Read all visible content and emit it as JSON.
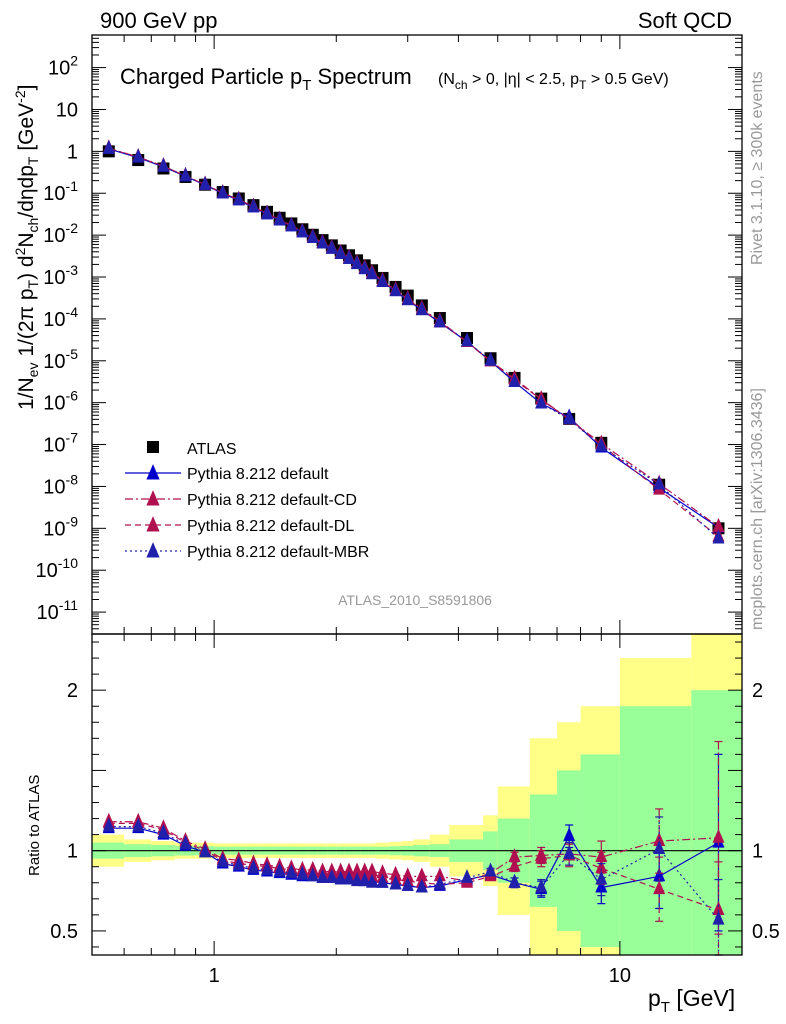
{
  "header": {
    "left": "900 GeV pp",
    "right": "Soft QCD"
  },
  "side_labels": {
    "rivet": "Rivet 3.1.10, ≥ 300k events",
    "mcplots": "mcplots.cern.ch [arXiv:1306.3436]"
  },
  "chart_data": {
    "type": "scatter",
    "title": "Charged Particle p_T Spectrum",
    "subtitle": "(N_ch > 0, |η| < 2.5, p_T > 0.5 GeV)",
    "analysis_id": "ATLAS_2010_S8591806",
    "xlabel": "p_T [GeV]",
    "ylabel_main": "1/N_ev 1/(2π p_T) d²N_ch/dηdp_T [GeV⁻²]",
    "ylabel_ratio": "Ratio to ATLAS",
    "xscale": "log",
    "xlim": [
      0.5,
      20
    ],
    "yscale": "log",
    "ylim": [
      3e-12,
      600
    ],
    "ratio_ylim": [
      0.35,
      2.35
    ],
    "x_ticks": [
      {
        "v": 1,
        "label": "1"
      },
      {
        "v": 10,
        "label": "10"
      }
    ],
    "y_ticks": [
      {
        "v": 1e-11,
        "label": "10^-11"
      },
      {
        "v": 1e-10,
        "label": "10^-10"
      },
      {
        "v": 1e-09,
        "label": "10^-9"
      },
      {
        "v": 1e-08,
        "label": "10^-8"
      },
      {
        "v": 1e-07,
        "label": "10^-7"
      },
      {
        "v": 1e-06,
        "label": "10^-6"
      },
      {
        "v": 1e-05,
        "label": "10^-5"
      },
      {
        "v": 0.0001,
        "label": "10^-4"
      },
      {
        "v": 0.001,
        "label": "10^-3"
      },
      {
        "v": 0.01,
        "label": "10^-2"
      },
      {
        "v": 0.1,
        "label": "10^-1"
      },
      {
        "v": 1,
        "label": "1"
      },
      {
        "v": 10,
        "label": "10"
      },
      {
        "v": 100,
        "label": "10^2"
      }
    ],
    "ratio_ticks": [
      {
        "v": 0.5,
        "label": "0.5"
      },
      {
        "v": 1,
        "label": "1"
      },
      {
        "v": 2,
        "label": "2"
      }
    ],
    "legend_position": "lower-left",
    "x": [
      0.55,
      0.65,
      0.75,
      0.85,
      0.95,
      1.05,
      1.15,
      1.25,
      1.35,
      1.45,
      1.55,
      1.65,
      1.75,
      1.85,
      1.95,
      2.05,
      2.15,
      2.25,
      2.35,
      2.45,
      2.6,
      2.8,
      3.0,
      3.25,
      3.6,
      4.2,
      4.8,
      5.5,
      6.4,
      7.5,
      9.0,
      12.5,
      17.5
    ],
    "data": {
      "name": "ATLAS",
      "values": [
        1.0,
        0.62,
        0.39,
        0.245,
        0.16,
        0.107,
        0.075,
        0.052,
        0.036,
        0.026,
        0.019,
        0.0138,
        0.0102,
        0.0076,
        0.0057,
        0.0043,
        0.0033,
        0.0025,
        0.0019,
        0.00145,
        0.00095,
        0.00058,
        0.00036,
        0.00021,
        0.000105,
        3.5e-05,
        1.15e-05,
        3.9e-06,
        1.25e-06,
        4.1e-07,
        1.1e-07,
        1.1e-08,
        1e-09
      ],
      "band_edges": [
        0.5,
        0.6,
        0.7,
        0.8,
        0.9,
        1.0,
        1.1,
        1.2,
        1.3,
        1.4,
        1.5,
        1.6,
        1.7,
        1.8,
        1.9,
        2.0,
        2.1,
        2.2,
        2.3,
        2.4,
        2.5,
        2.7,
        2.9,
        3.1,
        3.4,
        3.8,
        4.6,
        5.0,
        6.0,
        7.0,
        8.0,
        10.0,
        15.0,
        20.0
      ],
      "band_stat": [
        0.05,
        0.04,
        0.035,
        0.03,
        0.028,
        0.025,
        0.025,
        0.025,
        0.025,
        0.025,
        0.025,
        0.025,
        0.025,
        0.025,
        0.025,
        0.025,
        0.025,
        0.025,
        0.025,
        0.025,
        0.025,
        0.028,
        0.03,
        0.035,
        0.04,
        0.07,
        0.12,
        0.2,
        0.35,
        0.5,
        0.6,
        0.9,
        1.0
      ],
      "band_total": [
        0.1,
        0.07,
        0.06,
        0.05,
        0.05,
        0.045,
        0.045,
        0.045,
        0.045,
        0.045,
        0.045,
        0.045,
        0.045,
        0.045,
        0.045,
        0.045,
        0.045,
        0.045,
        0.045,
        0.045,
        0.05,
        0.055,
        0.06,
        0.07,
        0.1,
        0.16,
        0.22,
        0.4,
        0.7,
        0.8,
        0.9,
        1.2,
        1.4
      ]
    },
    "series": [
      {
        "name": "Pythia 8.212 default",
        "color": "#0000cc",
        "dash": "solid",
        "ratios": [
          1.14,
          1.14,
          1.1,
          1.03,
          0.99,
          0.92,
          0.9,
          0.88,
          0.87,
          0.86,
          0.85,
          0.84,
          0.84,
          0.83,
          0.83,
          0.82,
          0.82,
          0.82,
          0.81,
          0.81,
          0.8,
          0.79,
          0.78,
          0.77,
          0.78,
          0.82,
          0.85,
          0.8,
          0.76,
          1.09,
          0.77,
          0.84,
          1.05
        ],
        "err": [
          0,
          0,
          0,
          0,
          0,
          0,
          0,
          0,
          0,
          0,
          0,
          0,
          0,
          0,
          0,
          0,
          0,
          0,
          0,
          0,
          0,
          0,
          0,
          0,
          0,
          0,
          0.02,
          0.03,
          0.05,
          0.07,
          0.1,
          0.2,
          0.55
        ]
      },
      {
        "name": "Pythia 8.212 default-CD",
        "color": "#b01050",
        "dash": "dashdot",
        "ratios": [
          1.18,
          1.18,
          1.14,
          1.06,
          1.01,
          0.95,
          0.94,
          0.92,
          0.91,
          0.9,
          0.89,
          0.88,
          0.88,
          0.87,
          0.87,
          0.87,
          0.87,
          0.87,
          0.87,
          0.87,
          0.86,
          0.85,
          0.84,
          0.84,
          0.84,
          0.81,
          0.86,
          0.96,
          0.97,
          0.98,
          0.96,
          1.06,
          1.08
        ],
        "err": [
          0,
          0,
          0,
          0,
          0,
          0,
          0,
          0,
          0,
          0,
          0,
          0,
          0,
          0,
          0,
          0,
          0,
          0,
          0,
          0,
          0,
          0,
          0,
          0,
          0,
          0,
          0.02,
          0.03,
          0.05,
          0.07,
          0.1,
          0.2,
          0.6
        ]
      },
      {
        "name": "Pythia 8.212 default-DL",
        "color": "#b01050",
        "dash": "dashed",
        "ratios": [
          1.17,
          1.17,
          1.13,
          1.05,
          1.0,
          0.94,
          0.92,
          0.91,
          0.9,
          0.89,
          0.88,
          0.87,
          0.86,
          0.86,
          0.85,
          0.85,
          0.85,
          0.84,
          0.84,
          0.84,
          0.83,
          0.82,
          0.81,
          0.8,
          0.79,
          0.8,
          0.84,
          0.9,
          0.95,
          0.97,
          0.89,
          0.76,
          0.63
        ],
        "err": [
          0,
          0,
          0,
          0,
          0,
          0,
          0,
          0,
          0,
          0,
          0,
          0,
          0,
          0,
          0,
          0,
          0,
          0,
          0,
          0,
          0,
          0,
          0,
          0,
          0,
          0,
          0.02,
          0.03,
          0.05,
          0.07,
          0.1,
          0.2,
          0.3
        ]
      },
      {
        "name": "Pythia 8.212 default-MBR",
        "color": "#2020aa",
        "dash": "dotted",
        "ratios": [
          1.15,
          1.15,
          1.11,
          1.04,
          0.99,
          0.93,
          0.91,
          0.89,
          0.88,
          0.87,
          0.86,
          0.85,
          0.84,
          0.83,
          0.83,
          0.82,
          0.82,
          0.81,
          0.81,
          0.8,
          0.8,
          0.79,
          0.78,
          0.77,
          0.79,
          0.83,
          0.87,
          0.8,
          0.77,
          0.98,
          0.82,
          1.01,
          0.57
        ],
        "err": [
          0,
          0,
          0,
          0,
          0,
          0,
          0,
          0,
          0,
          0,
          0,
          0,
          0,
          0,
          0,
          0,
          0,
          0,
          0,
          0,
          0,
          0,
          0,
          0,
          0,
          0,
          0.02,
          0.03,
          0.05,
          0.07,
          0.1,
          0.2,
          0.25
        ]
      }
    ]
  }
}
